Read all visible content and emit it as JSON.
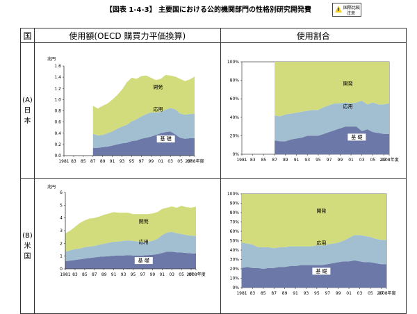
{
  "title": "【図表 1-4-3】 主要国における公的機関部門の性格別研究開発費",
  "badge": {
    "line1": "国際比較",
    "line2": "注意"
  },
  "headers": {
    "country": "国",
    "amount": "使用額(OECD 購買力平価換算)",
    "share": "使用割合"
  },
  "rows": [
    {
      "country_lines": [
        "(A)",
        "日",
        "本"
      ]
    },
    {
      "country_lines": [
        "(B)",
        "米",
        "国"
      ]
    }
  ],
  "colors": {
    "basic": "#6b78a8",
    "applied": "#a2bfd2",
    "development": "#d2dc7c"
  },
  "chart_data": [
    {
      "type": "area",
      "stacked": true,
      "country": "日本",
      "unit": "兆円",
      "x": [
        1981,
        1982,
        1983,
        1984,
        1985,
        1986,
        1987,
        1988,
        1989,
        1990,
        1991,
        1992,
        1993,
        1994,
        1995,
        1996,
        1997,
        1998,
        1999,
        2000,
        2001,
        2002,
        2003,
        2004,
        2005,
        2006,
        2007,
        2008
      ],
      "x_tick_labels": [
        "1981",
        "83",
        "85",
        "87",
        "89",
        "91",
        "93",
        "95",
        "97",
        "99",
        "01",
        "03",
        "05",
        "07",
        "2008年度"
      ],
      "ylim": [
        0,
        1.6
      ],
      "y_ticks": [
        "0.0",
        "0.2",
        "0.4",
        "0.6",
        "0.8",
        "1.0",
        "1.2",
        "1.4",
        "1.6"
      ],
      "series": [
        {
          "name": "基礎",
          "values": [
            null,
            null,
            null,
            null,
            null,
            null,
            0.14,
            0.14,
            0.15,
            0.16,
            0.18,
            0.2,
            0.22,
            0.23,
            0.26,
            0.27,
            0.3,
            0.32,
            0.34,
            0.37,
            0.4,
            0.42,
            0.43,
            0.38,
            0.32,
            0.3,
            0.31,
            0.31
          ]
        },
        {
          "name": "応用",
          "values": [
            null,
            null,
            null,
            null,
            null,
            null,
            0.25,
            0.22,
            0.22,
            0.24,
            0.25,
            0.28,
            0.3,
            0.32,
            0.35,
            0.38,
            0.4,
            0.42,
            0.43,
            0.4,
            0.38,
            0.4,
            0.42,
            0.45,
            0.43,
            0.43,
            0.43,
            0.44
          ]
        },
        {
          "name": "開発",
          "values": [
            null,
            null,
            null,
            null,
            null,
            null,
            0.5,
            0.48,
            0.52,
            0.53,
            0.57,
            0.6,
            0.66,
            0.76,
            0.78,
            0.72,
            0.72,
            0.69,
            0.62,
            0.58,
            0.59,
            0.62,
            0.58,
            0.58,
            0.62,
            0.6,
            0.62,
            0.66
          ]
        }
      ],
      "labels": {
        "development": "開発",
        "applied": "応用",
        "basic": "基 礎"
      },
      "y_unit_label": "兆円"
    },
    {
      "type": "area",
      "stacked": true,
      "country": "日本",
      "unit": "%",
      "x": [
        1981,
        1982,
        1983,
        1984,
        1985,
        1986,
        1987,
        1988,
        1989,
        1990,
        1991,
        1992,
        1993,
        1994,
        1995,
        1996,
        1997,
        1998,
        1999,
        2000,
        2001,
        2002,
        2003,
        2004,
        2005,
        2006,
        2007,
        2008
      ],
      "x_tick_labels": [
        "1981",
        "83",
        "85",
        "87",
        "89",
        "91",
        "93",
        "95",
        "97",
        "99",
        "01",
        "03",
        "05",
        "07",
        "2008年度"
      ],
      "ylim": [
        0,
        100
      ],
      "y_ticks": [
        "0%",
        "20%",
        "40%",
        "60%",
        "80%",
        "100%"
      ],
      "series": [
        {
          "name": "基礎",
          "values": [
            null,
            null,
            null,
            null,
            null,
            null,
            15,
            14,
            14,
            16,
            17,
            18,
            20,
            20,
            20,
            22,
            24,
            26,
            28,
            30,
            30,
            30,
            25,
            27,
            24,
            23,
            22,
            22
          ]
        },
        {
          "name": "応用",
          "values": [
            null,
            null,
            null,
            null,
            null,
            null,
            27,
            27,
            29,
            28,
            28,
            28,
            27,
            28,
            28,
            29,
            29,
            29,
            27,
            26,
            25,
            26,
            33,
            27,
            32,
            31,
            32,
            33
          ]
        },
        {
          "name": "開発",
          "values": [
            null,
            null,
            null,
            null,
            null,
            null,
            58,
            59,
            57,
            56,
            55,
            54,
            53,
            52,
            52,
            49,
            47,
            45,
            45,
            44,
            45,
            44,
            42,
            46,
            44,
            46,
            46,
            45
          ]
        }
      ],
      "labels": {
        "development": "開発",
        "applied": "応用",
        "basic": "基 礎"
      }
    },
    {
      "type": "area",
      "stacked": true,
      "country": "米国",
      "unit": "兆円",
      "x": [
        1981,
        1982,
        1983,
        1984,
        1985,
        1986,
        1987,
        1988,
        1989,
        1990,
        1991,
        1992,
        1993,
        1994,
        1995,
        1996,
        1997,
        1998,
        1999,
        2000,
        2001,
        2002,
        2003,
        2004,
        2005,
        2006,
        2007,
        2008
      ],
      "x_tick_labels": [
        "1981",
        "83",
        "85",
        "87",
        "89",
        "91",
        "93",
        "95",
        "97",
        "99",
        "01",
        "03",
        "05",
        "07",
        "2008年度"
      ],
      "ylim": [
        0,
        6
      ],
      "y_ticks": [
        "0",
        "1",
        "2",
        "3",
        "4",
        "5",
        "6"
      ],
      "series": [
        {
          "name": "基礎",
          "values": [
            0.6,
            0.65,
            0.7,
            0.75,
            0.8,
            0.85,
            0.9,
            0.95,
            0.97,
            1.0,
            1.02,
            1.05,
            1.05,
            1.08,
            1.05,
            1.05,
            1.05,
            1.08,
            1.1,
            1.15,
            1.25,
            1.35,
            1.35,
            1.3,
            1.28,
            1.25,
            1.22,
            1.2
          ]
        },
        {
          "name": "応用",
          "values": [
            0.75,
            0.8,
            0.85,
            0.85,
            0.9,
            0.9,
            0.9,
            0.95,
            1.0,
            1.05,
            1.1,
            1.1,
            1.15,
            1.15,
            1.15,
            1.1,
            1.05,
            1.05,
            1.1,
            1.2,
            1.4,
            1.5,
            1.55,
            1.5,
            1.45,
            1.4,
            1.38,
            1.38
          ]
        },
        {
          "name": "開発",
          "values": [
            1.45,
            1.55,
            1.75,
            2.0,
            2.1,
            2.2,
            2.2,
            2.2,
            2.28,
            2.3,
            2.33,
            2.25,
            2.2,
            2.17,
            2.1,
            2.15,
            2.2,
            2.17,
            2.15,
            2.1,
            2.05,
            1.95,
            2.0,
            2.0,
            2.22,
            2.2,
            2.2,
            2.3
          ]
        }
      ],
      "labels": {
        "development": "開発",
        "applied": "応用",
        "basic": "基 礎"
      },
      "y_unit_label": "兆円"
    },
    {
      "type": "area",
      "stacked": true,
      "country": "米国",
      "unit": "%",
      "x": [
        1981,
        1982,
        1983,
        1984,
        1985,
        1986,
        1987,
        1988,
        1989,
        1990,
        1991,
        1992,
        1993,
        1994,
        1995,
        1996,
        1997,
        1998,
        1999,
        2000,
        2001,
        2002,
        2003,
        2004,
        2005,
        2006,
        2007,
        2008
      ],
      "x_tick_labels": [
        "1981",
        "83",
        "85",
        "87",
        "89",
        "91",
        "93",
        "95",
        "97",
        "99",
        "01",
        "03",
        "05",
        "07",
        "2008年度"
      ],
      "ylim": [
        0,
        100
      ],
      "y_ticks": [
        "0%",
        "10%",
        "20%",
        "30%",
        "40%",
        "50%",
        "60%",
        "70%",
        "80%",
        "90%",
        "100%"
      ],
      "series": [
        {
          "name": "基礎",
          "values": [
            21,
            22,
            21,
            21,
            20,
            21,
            21,
            22,
            22,
            23,
            23,
            24,
            24,
            24,
            24,
            24,
            25,
            26,
            27,
            28,
            28,
            29,
            28,
            27,
            27,
            26,
            25,
            25
          ]
        },
        {
          "name": "応用",
          "values": [
            27,
            25,
            25,
            22,
            23,
            22,
            21,
            21,
            21,
            21,
            21,
            20,
            20,
            20,
            21,
            21,
            21,
            21,
            21,
            22,
            25,
            27,
            28,
            28,
            27,
            26,
            26,
            26
          ]
        },
        {
          "name": "開発",
          "values": [
            52,
            53,
            54,
            57,
            57,
            57,
            58,
            57,
            57,
            56,
            56,
            56,
            56,
            56,
            55,
            55,
            54,
            53,
            52,
            50,
            47,
            44,
            44,
            45,
            46,
            48,
            49,
            49
          ]
        }
      ],
      "labels": {
        "development": "開発",
        "applied": "応用",
        "basic": "基 礎"
      }
    }
  ]
}
